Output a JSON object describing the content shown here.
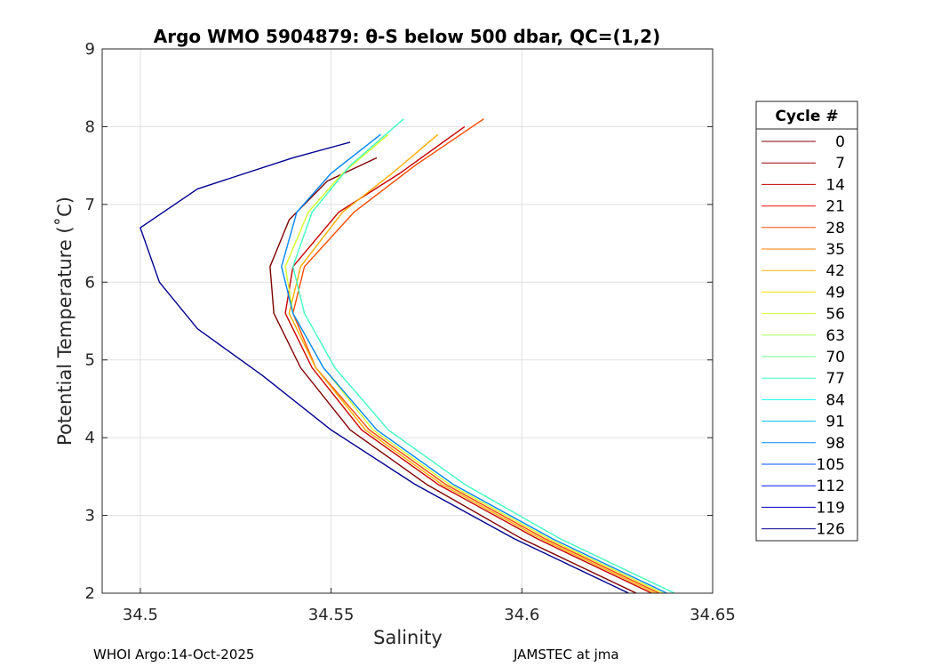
{
  "chart_data": {
    "type": "line",
    "title": "Argo WMO 5904879: θ-S below 500 dbar,  QC=(1,2)",
    "xlabel": "Salinity",
    "ylabel": "Potential Temperature (˚C)",
    "xlim": [
      34.49,
      34.65
    ],
    "ylim": [
      2,
      9
    ],
    "xticks": [
      34.5,
      34.55,
      34.6,
      34.65
    ],
    "xtick_labels": [
      "34.5",
      "34.55",
      "34.6",
      "34.65"
    ],
    "yticks": [
      2,
      3,
      4,
      5,
      6,
      7,
      8,
      9
    ],
    "ytick_labels": [
      "2",
      "3",
      "4",
      "5",
      "6",
      "7",
      "8",
      "9"
    ],
    "grid": true,
    "legend_title": "Cycle #",
    "legend_position": "right-outside",
    "cycles": [
      "0",
      "7",
      "14",
      "21",
      "28",
      "35",
      "42",
      "49",
      "56",
      "63",
      "70",
      "77",
      "84",
      "91",
      "98",
      "105",
      "112",
      "119",
      "126"
    ],
    "cycle_colors": [
      "#800000",
      "#9a0000",
      "#c80000",
      "#e81800",
      "#ff4a00",
      "#ff7c00",
      "#ffae00",
      "#ffe000",
      "#d6ff29",
      "#a3ff5c",
      "#70ff8f",
      "#3dffc2",
      "#0affef",
      "#00c4ff",
      "#0088ff",
      "#0050ff",
      "#0018ff",
      "#0000c8",
      "#00008f"
    ],
    "series": [
      {
        "name": "0",
        "x": [
          34.63,
          34.6,
          34.575,
          34.555,
          34.542,
          34.535,
          34.534,
          34.539,
          34.549,
          34.562
        ],
        "y": [
          2.0,
          2.7,
          3.4,
          4.1,
          4.9,
          5.6,
          6.2,
          6.8,
          7.3,
          7.6
        ]
      },
      {
        "name": "14",
        "x": [
          34.634,
          34.604,
          34.578,
          34.558,
          34.545,
          34.538,
          34.54,
          34.552,
          34.568,
          34.585
        ],
        "y": [
          2.0,
          2.7,
          3.4,
          4.1,
          4.9,
          5.6,
          6.2,
          6.9,
          7.4,
          8.0
        ]
      },
      {
        "name": "28",
        "x": [
          34.636,
          34.606,
          34.58,
          34.56,
          34.546,
          34.54,
          34.543,
          34.556,
          34.572,
          34.59
        ],
        "y": [
          2.0,
          2.7,
          3.4,
          4.1,
          4.9,
          5.6,
          6.2,
          6.9,
          7.5,
          8.1
        ]
      },
      {
        "name": "42",
        "x": [
          34.635,
          34.605,
          34.579,
          34.559,
          34.546,
          34.539,
          34.542,
          34.553,
          34.566,
          34.578
        ],
        "y": [
          2.0,
          2.7,
          3.4,
          4.1,
          4.9,
          5.6,
          6.2,
          6.9,
          7.4,
          7.9
        ]
      },
      {
        "name": "56",
        "x": [
          34.637,
          34.607,
          34.581,
          34.561,
          34.548,
          34.54,
          34.538,
          34.544,
          34.553,
          34.565
        ],
        "y": [
          2.0,
          2.7,
          3.4,
          4.1,
          4.9,
          5.6,
          6.2,
          6.9,
          7.4,
          7.9
        ]
      },
      {
        "name": "77",
        "x": [
          34.64,
          34.61,
          34.585,
          34.565,
          34.551,
          34.543,
          34.54,
          34.545,
          34.555,
          34.569
        ],
        "y": [
          2.0,
          2.7,
          3.4,
          4.1,
          4.9,
          5.6,
          6.2,
          6.9,
          7.5,
          8.1
        ]
      },
      {
        "name": "98",
        "x": [
          34.638,
          34.608,
          34.582,
          34.562,
          34.548,
          34.54,
          34.537,
          34.541,
          34.55,
          34.563
        ],
        "y": [
          2.0,
          2.7,
          3.4,
          4.1,
          4.9,
          5.6,
          6.2,
          6.9,
          7.4,
          7.9
        ]
      },
      {
        "name": "126",
        "x": [
          34.628,
          34.598,
          34.572,
          34.55,
          34.532,
          34.515,
          34.505,
          34.5,
          34.515,
          34.54,
          34.555
        ],
        "y": [
          2.0,
          2.7,
          3.4,
          4.1,
          4.8,
          5.4,
          6.0,
          6.7,
          7.2,
          7.6,
          7.8
        ]
      }
    ]
  },
  "footer": {
    "left": "WHOI Argo:14-Oct-2025",
    "right": "JAMSTEC at jma"
  }
}
